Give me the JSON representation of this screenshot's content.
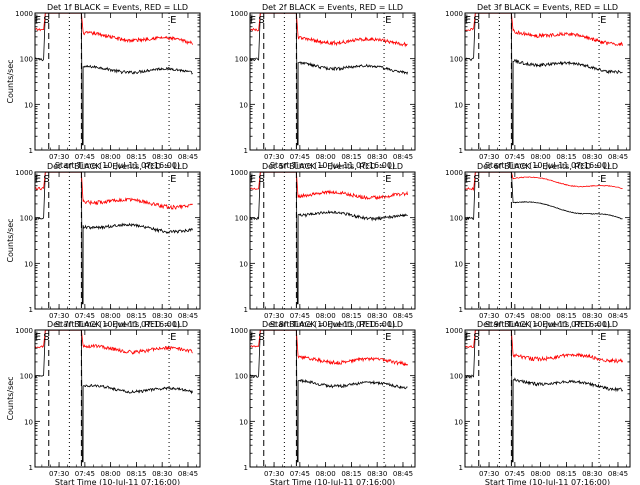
{
  "chart_data": [
    {
      "type": "line",
      "title": "Det 1f BLACK = Events, RED = LLD",
      "xlabel": "Start Time (10-Jul-11 07:16:00)",
      "ylabel": "Counts/sec",
      "xlim": [
        "07:16",
        "08:52"
      ],
      "ylim": [
        1,
        1000
      ],
      "yscale": "log",
      "xticks": [
        "07:30",
        "07:45",
        "08:00",
        "08:15",
        "08:30",
        "08:45"
      ],
      "yticks": [
        "1",
        "10",
        "100",
        "1000"
      ],
      "markers": [
        {
          "label": "E",
          "time": "07:17"
        },
        {
          "label": "S",
          "time": "07:22"
        }
      ],
      "dashed_lines": [
        "07:24",
        "07:43"
      ],
      "dotted_lines": [
        "07:36",
        "08:34"
      ],
      "series": [
        {
          "name": "Events",
          "color": "#000000",
          "style": "events",
          "base": 60,
          "tail": 52
        },
        {
          "name": "LLD",
          "color": "#ff0000",
          "style": "lld",
          "base": 330,
          "tail": 230
        }
      ]
    },
    {
      "type": "line",
      "title": "Det 2f BLACK = Events, RED = LLD",
      "xlabel": "Start Time (10-Jul-11 07:16:00)",
      "ylabel": "",
      "xlim": [
        "07:16",
        "08:52"
      ],
      "ylim": [
        1,
        1000
      ],
      "yscale": "log",
      "xticks": [
        "07:30",
        "07:45",
        "08:00",
        "08:15",
        "08:30",
        "08:45"
      ],
      "yticks": [
        "1",
        "10",
        "100",
        "1000"
      ],
      "markers": [
        {
          "label": "E",
          "time": "07:17"
        },
        {
          "label": "S",
          "time": "07:22"
        }
      ],
      "dashed_lines": [
        "07:24",
        "07:43"
      ],
      "dotted_lines": [
        "07:36",
        "08:34"
      ],
      "series": [
        {
          "name": "Events",
          "color": "#000000",
          "style": "events",
          "base": 75,
          "tail": 55
        },
        {
          "name": "LLD",
          "color": "#ff0000",
          "style": "lld",
          "base": 260,
          "tail": 230
        }
      ]
    },
    {
      "type": "line",
      "title": "Det 3f BLACK = Events, RED = LLD",
      "xlabel": "Start Time (10-Jul-11 07:16:00)",
      "ylabel": "",
      "xlim": [
        "07:16",
        "08:52"
      ],
      "ylim": [
        1,
        1000
      ],
      "yscale": "log",
      "xticks": [
        "07:30",
        "07:45",
        "08:00",
        "08:15",
        "08:30",
        "08:45"
      ],
      "yticks": [
        "1",
        "10",
        "100",
        "1000"
      ],
      "markers": [
        {
          "label": "E",
          "time": "07:17"
        },
        {
          "label": "S",
          "time": "07:22"
        }
      ],
      "dashed_lines": [
        "07:24",
        "07:43"
      ],
      "dotted_lines": [
        "07:36",
        "08:34"
      ],
      "series": [
        {
          "name": "Events",
          "color": "#000000",
          "style": "events",
          "base": 90,
          "tail": 55
        },
        {
          "name": "LLD",
          "color": "#ff0000",
          "style": "lld",
          "base": 400,
          "tail": 220
        }
      ]
    },
    {
      "type": "line",
      "title": "Det 4f BLACK = Events, RED = LLD",
      "xlabel": "Start Time (10-Jul-11 07:16:00)",
      "ylabel": "Counts/sec",
      "xlim": [
        "07:16",
        "08:52"
      ],
      "ylim": [
        1,
        1000
      ],
      "yscale": "log",
      "xticks": [
        "07:30",
        "07:45",
        "08:00",
        "08:15",
        "08:30",
        "08:45"
      ],
      "yticks": [
        "1",
        "10",
        "100",
        "1000"
      ],
      "markers": [
        {
          "label": "E",
          "time": "07:17"
        },
        {
          "label": "S",
          "time": "07:22"
        }
      ],
      "dashed_lines": [
        "07:24",
        "07:43"
      ],
      "dotted_lines": [
        "07:36",
        "08:34"
      ],
      "series": [
        {
          "name": "Events",
          "color": "#000000",
          "style": "events",
          "base": 70,
          "tail": 52
        },
        {
          "name": "LLD",
          "color": "#ff0000",
          "style": "lld",
          "base": 250,
          "tail": 180
        }
      ]
    },
    {
      "type": "line",
      "title": "Det 5f BLACK = Events, RED = LLD",
      "xlabel": "Start Time (10-Jul-11 07:16:00)",
      "ylabel": "",
      "xlim": [
        "07:16",
        "08:52"
      ],
      "ylim": [
        1,
        1000
      ],
      "yscale": "log",
      "xticks": [
        "07:30",
        "07:45",
        "08:00",
        "08:15",
        "08:30",
        "08:45"
      ],
      "yticks": [
        "1",
        "10",
        "100",
        "1000"
      ],
      "markers": [
        {
          "label": "E",
          "time": "07:17"
        },
        {
          "label": "S",
          "time": "07:22"
        }
      ],
      "dashed_lines": [
        "07:24",
        "07:43"
      ],
      "dotted_lines": [
        "07:36",
        "08:34"
      ],
      "series": [
        {
          "name": "Events",
          "color": "#000000",
          "style": "events",
          "base": 125,
          "tail": 100
        },
        {
          "name": "LLD",
          "color": "#ff0000",
          "style": "lld",
          "base": 330,
          "tail": 300
        }
      ]
    },
    {
      "type": "line",
      "title": "Det 6f BLACK = Events, RED = LLD",
      "xlabel": "Start Time (10-Jul-11 07:16:00)",
      "ylabel": "",
      "xlim": [
        "07:16",
        "08:52"
      ],
      "ylim": [
        1,
        1000
      ],
      "yscale": "log",
      "xticks": [
        "07:30",
        "07:45",
        "08:00",
        "08:15",
        "08:30",
        "08:45"
      ],
      "yticks": [
        "1",
        "10",
        "100",
        "1000"
      ],
      "markers": [
        {
          "label": "E",
          "time": "07:17"
        },
        {
          "label": "S",
          "time": "07:22"
        }
      ],
      "dashed_lines": [
        "07:24",
        "07:43"
      ],
      "dotted_lines": [
        "07:36",
        "08:34"
      ],
      "series": [
        {
          "name": "Events",
          "color": "#000000",
          "style": "smooth",
          "base": 220,
          "tail": 85
        },
        {
          "name": "LLD",
          "color": "#ff0000",
          "style": "smooth",
          "base": 750,
          "tail": 400
        }
      ]
    },
    {
      "type": "line",
      "title": "Det 7f BLACK = Events, RED = LLD",
      "xlabel": "Start Time (10-Jul-11 07:16:00)",
      "ylabel": "Counts/sec",
      "xlim": [
        "07:16",
        "08:52"
      ],
      "ylim": [
        1,
        1000
      ],
      "yscale": "log",
      "xticks": [
        "07:30",
        "07:45",
        "08:00",
        "08:15",
        "08:30",
        "08:45"
      ],
      "yticks": [
        "1",
        "10",
        "100",
        "1000"
      ],
      "markers": [
        {
          "label": "E",
          "time": "07:17"
        },
        {
          "label": "S",
          "time": "07:22"
        }
      ],
      "dashed_lines": [
        "07:24",
        "07:43"
      ],
      "dotted_lines": [
        "07:36",
        "08:34"
      ],
      "series": [
        {
          "name": "Events",
          "color": "#000000",
          "style": "events",
          "base": 55,
          "tail": 45
        },
        {
          "name": "LLD",
          "color": "#ff0000",
          "style": "lld",
          "base": 400,
          "tail": 350
        }
      ]
    },
    {
      "type": "line",
      "title": "Det 8f BLACK = Events, RED = LLD",
      "xlabel": "Start Time (10-Jul-11 07:16:00)",
      "ylabel": "",
      "xlim": [
        "07:16",
        "08:52"
      ],
      "ylim": [
        1,
        1000
      ],
      "yscale": "log",
      "xticks": [
        "07:30",
        "07:45",
        "08:00",
        "08:15",
        "08:30",
        "08:45"
      ],
      "yticks": [
        "1",
        "10",
        "100",
        "1000"
      ],
      "markers": [
        {
          "label": "E",
          "time": "07:17"
        },
        {
          "label": "S",
          "time": "07:22"
        }
      ],
      "dashed_lines": [
        "07:24",
        "07:43"
      ],
      "dotted_lines": [
        "07:36",
        "08:34"
      ],
      "series": [
        {
          "name": "Events",
          "color": "#000000",
          "style": "events",
          "base": 70,
          "tail": 60
        },
        {
          "name": "LLD",
          "color": "#ff0000",
          "style": "lld",
          "base": 230,
          "tail": 200
        }
      ]
    },
    {
      "type": "line",
      "title": "Det 9f BLACK = Events, RED = LLD",
      "xlabel": "Start Time (10-Jul-11 07:16:00)",
      "ylabel": "",
      "xlim": [
        "07:16",
        "08:52"
      ],
      "ylim": [
        1,
        1000
      ],
      "yscale": "log",
      "xticks": [
        "07:30",
        "07:45",
        "08:00",
        "08:15",
        "08:30",
        "08:45"
      ],
      "yticks": [
        "1",
        "10",
        "100",
        "1000"
      ],
      "markers": [
        {
          "label": "E",
          "time": "07:17"
        },
        {
          "label": "S",
          "time": "07:22"
        }
      ],
      "dashed_lines": [
        "07:24",
        "07:43"
      ],
      "dotted_lines": [
        "07:36",
        "08:34"
      ],
      "series": [
        {
          "name": "Events",
          "color": "#000000",
          "style": "events",
          "base": 80,
          "tail": 55
        },
        {
          "name": "LLD",
          "color": "#ff0000",
          "style": "lld",
          "base": 270,
          "tail": 240
        }
      ]
    }
  ]
}
